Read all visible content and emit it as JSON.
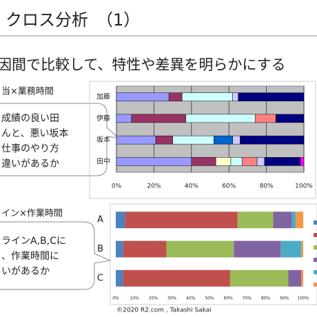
{
  "slide": {
    "title": "クロス分析　（1）",
    "subtitle": "因間で比較して、特性や差異を明らかにする",
    "label_1": "当×業務時間",
    "callout_1": [
      "成績の良い田",
      "んと、悪い坂本",
      "仕事のやり方",
      "違いがあるか"
    ],
    "label_2": "イン×作業時間",
    "callout_2": [
      "ラインA,B,Cに",
      "、作業時間に",
      "いがあるか"
    ],
    "footer": "©2020 R2.com , Takashi Sakai"
  },
  "chart_data": [
    {
      "type": "stacked-hbar",
      "categories": [
        "加藤",
        "伊藤",
        "坂本",
        "田中"
      ],
      "series": [
        {
          "color": "#9999ff",
          "values": [
            28,
            8,
            21,
            40
          ]
        },
        {
          "color": "#993366",
          "values": [
            7,
            29,
            9,
            13
          ]
        },
        {
          "color": "#ffffcc",
          "values": [
            0,
            0,
            0,
            8
          ]
        },
        {
          "color": "#ccffff",
          "values": [
            27,
            37,
            22,
            6
          ]
        },
        {
          "color": "#ff8080",
          "values": [
            0,
            11,
            0,
            8
          ]
        },
        {
          "color": "#0066cc",
          "values": [
            0,
            0,
            10,
            0
          ]
        },
        {
          "color": "#ccccff",
          "values": [
            3,
            0,
            4,
            4
          ]
        },
        {
          "color": "#000080",
          "values": [
            35,
            15,
            34,
            19
          ]
        },
        {
          "color": "#ff00ff",
          "values": [
            0,
            0,
            0,
            2
          ]
        }
      ],
      "xlim": [
        0,
        100
      ],
      "xticks": [
        {
          "value": 0,
          "label": "0%"
        },
        {
          "value": 20,
          "label": "20%"
        },
        {
          "value": 40,
          "label": "40%"
        },
        {
          "value": 60,
          "label": "60%"
        },
        {
          "value": 80,
          "label": "80%"
        },
        {
          "value": 100,
          "label": "100%"
        }
      ],
      "grid": true,
      "background": "#c0c0c0"
    },
    {
      "type": "stacked-hbar",
      "categories": [
        "A",
        "B",
        "C"
      ],
      "series": [
        {
          "color": "#4f81bd",
          "values": [
            5,
            4,
            4
          ]
        },
        {
          "color": "#c0504d",
          "values": [
            60,
            23,
            57
          ]
        },
        {
          "color": "#9bbb59",
          "values": [
            19,
            36,
            31
          ]
        },
        {
          "color": "#8064a2",
          "values": [
            10,
            25,
            7
          ]
        },
        {
          "color": "#4bacc6",
          "values": [
            2,
            11,
            0
          ]
        },
        {
          "color": "#f79646",
          "values": [
            4,
            1,
            1
          ]
        }
      ],
      "xlim": [
        0,
        100
      ],
      "xticks": [
        {
          "value": 0,
          "label": "0%"
        },
        {
          "value": 10,
          "label": "10%"
        },
        {
          "value": 20,
          "label": "20%"
        },
        {
          "value": 30,
          "label": "30%"
        },
        {
          "value": 40,
          "label": "40%"
        },
        {
          "value": 50,
          "label": "50%"
        },
        {
          "value": 60,
          "label": "60%"
        },
        {
          "value": 70,
          "label": "70%"
        },
        {
          "value": 80,
          "label": "80%"
        },
        {
          "value": 90,
          "label": "90%"
        },
        {
          "value": 100,
          "label": "100%"
        }
      ],
      "grid": false,
      "background": "#ffffff"
    }
  ]
}
